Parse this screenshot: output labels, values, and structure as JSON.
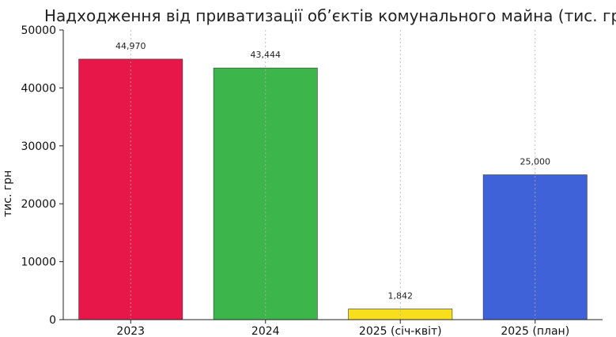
{
  "chart_data": {
    "type": "bar",
    "title": "Надходження від приватизації об’єктів комунального майна (тис. грн",
    "xlabel": "",
    "ylabel": "тис. грн",
    "categories": [
      "2023",
      "2024",
      "2025 (січ-квіт)",
      "2025 (план)"
    ],
    "values": [
      44970,
      43444,
      1842,
      25000
    ],
    "value_labels": [
      "44,970",
      "43,444",
      "1,842",
      "25,000"
    ],
    "colors": [
      "#e8174a",
      "#3cb64a",
      "#f7df1e",
      "#4062d8"
    ],
    "ylim": [
      0,
      50000
    ],
    "yticks": [
      "0",
      "10000",
      "20000",
      "30000",
      "40000",
      "50000"
    ],
    "grid": "vertical-dashed",
    "legend": "none"
  }
}
